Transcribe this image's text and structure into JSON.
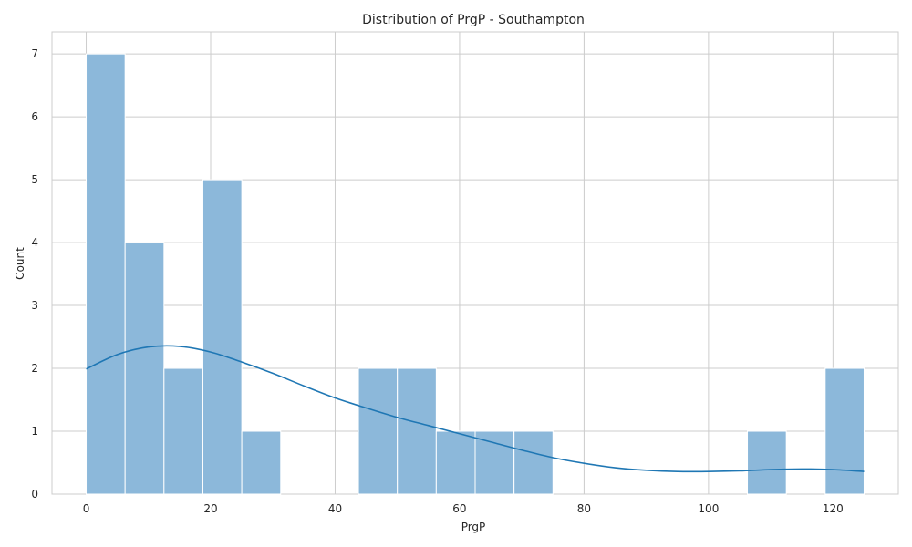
{
  "chart_data": {
    "type": "bar",
    "subtype": "histogram with KDE curve",
    "title": "Distribution of PrgP - Southampton",
    "xlabel": "PrgP",
    "ylabel": "Count",
    "xlim": [
      -5.5,
      130.5
    ],
    "ylim": [
      0,
      7.35
    ],
    "xticks": [
      0,
      20,
      40,
      60,
      80,
      100,
      120
    ],
    "yticks": [
      0,
      1,
      2,
      3,
      4,
      5,
      6,
      7
    ],
    "grid": true,
    "bin_edges": [
      0,
      6.25,
      12.5,
      18.75,
      25,
      31.25,
      37.5,
      43.75,
      50,
      56.25,
      62.5,
      68.75,
      75,
      81.25,
      87.5,
      93.75,
      100,
      106.25,
      112.5,
      118.75,
      125
    ],
    "counts": [
      7,
      4,
      2,
      5,
      1,
      0,
      0,
      2,
      2,
      1,
      1,
      1,
      0,
      0,
      0,
      0,
      0,
      1,
      0,
      2
    ],
    "kde": {
      "x": [
        0,
        5,
        10,
        15,
        20,
        25,
        30,
        35,
        40,
        45,
        50,
        55,
        60,
        65,
        70,
        75,
        80,
        85,
        90,
        95,
        100,
        105,
        110,
        115,
        120,
        125
      ],
      "y": [
        1.99,
        2.22,
        2.34,
        2.35,
        2.26,
        2.1,
        1.92,
        1.72,
        1.53,
        1.37,
        1.22,
        1.09,
        0.96,
        0.83,
        0.7,
        0.58,
        0.49,
        0.42,
        0.38,
        0.36,
        0.36,
        0.37,
        0.39,
        0.4,
        0.39,
        0.36
      ]
    },
    "colors": {
      "bar_fill": "#8cb8da",
      "bar_edge": "#ffffff",
      "kde_line": "#1f77b4",
      "grid": "#cccccc",
      "background": "#ffffff"
    }
  }
}
